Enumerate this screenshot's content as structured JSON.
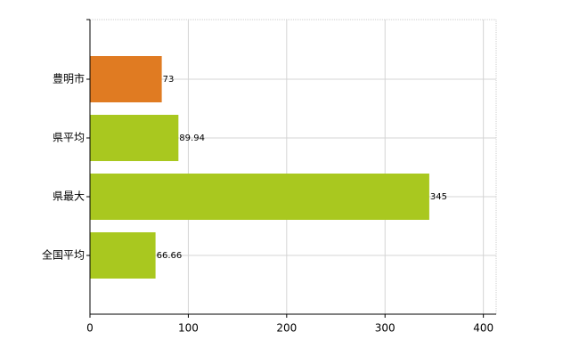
{
  "chart_data": {
    "type": "hbar",
    "categories": [
      "豊明市",
      "県平均",
      "県最大",
      "全国平均"
    ],
    "values": [
      73,
      89.94,
      345,
      66.66
    ],
    "colors": [
      "#e07b22",
      "#a9c81f",
      "#a9c81f",
      "#a9c81f"
    ],
    "xlim": [
      0,
      413
    ],
    "xticks": [
      0,
      100,
      200,
      300,
      400
    ],
    "grid": true
  }
}
